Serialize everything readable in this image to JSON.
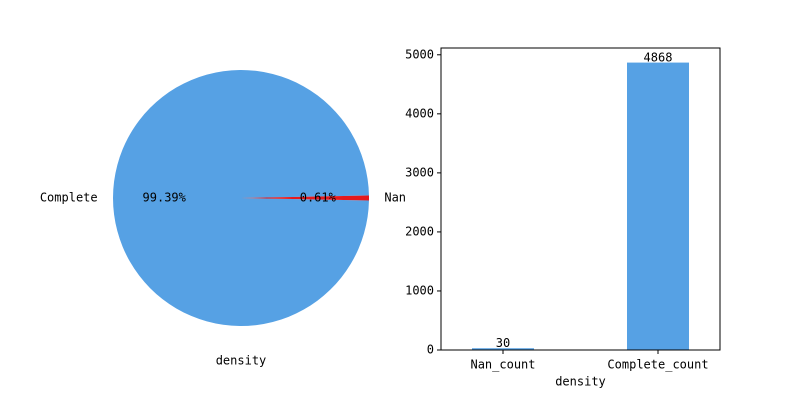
{
  "colors": {
    "complete": "#56a1e4",
    "nan": "#e5191c",
    "axis": "#000000",
    "background": "#ffffff"
  },
  "chart_data": [
    {
      "type": "pie",
      "xlabel": "density",
      "slices": [
        {
          "label": "Complete",
          "value": 4868,
          "pct_label": "99.39%",
          "color": "#56a1e4"
        },
        {
          "label": "Nan",
          "value": 30,
          "pct_label": "0.61%",
          "color": "#e5191c"
        }
      ]
    },
    {
      "type": "bar",
      "xlabel": "density",
      "categories": [
        "Nan_count",
        "Complete_count"
      ],
      "values": [
        30,
        4868
      ],
      "data_labels": [
        "30",
        "4868"
      ],
      "ylim": [
        0,
        5115
      ],
      "yticks": [
        0,
        1000,
        2000,
        3000,
        4000,
        5000
      ],
      "bar_color": "#56a1e4",
      "grid": false
    }
  ]
}
